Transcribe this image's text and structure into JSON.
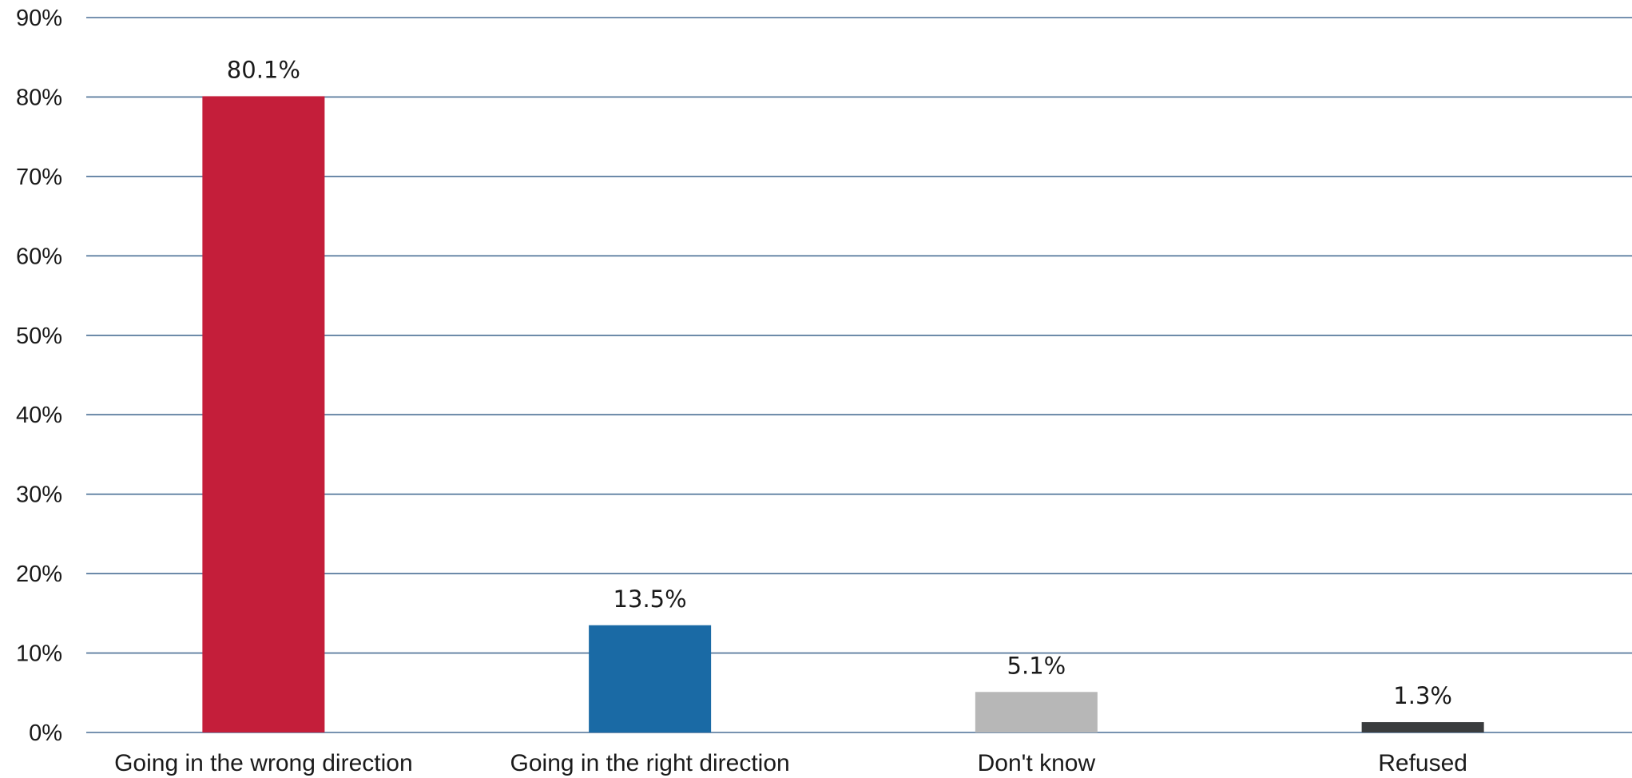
{
  "chart_data": {
    "type": "bar",
    "title": "",
    "xlabel": "",
    "ylabel": "",
    "categories": [
      "Going in the wrong direction",
      "Going in the right direction",
      "Don't know",
      "Refused"
    ],
    "values": [
      80.1,
      13.5,
      5.1,
      1.3
    ],
    "data_labels": [
      "80.1%",
      "13.5%",
      "5.1%",
      "1.3%"
    ],
    "bar_colors": [
      "#c41e3a",
      "#1a6aa5",
      "#b7b7b7",
      "#3a3c3e"
    ],
    "ylim": [
      0,
      90
    ],
    "yticks": [
      0,
      10,
      20,
      30,
      40,
      50,
      60,
      70,
      80,
      90
    ],
    "ytick_labels": [
      "0%",
      "10%",
      "20%",
      "30%",
      "40%",
      "50%",
      "60%",
      "70%",
      "80%",
      "90%"
    ],
    "grid": true,
    "grid_color": "#4a6f95",
    "legend": "none"
  }
}
